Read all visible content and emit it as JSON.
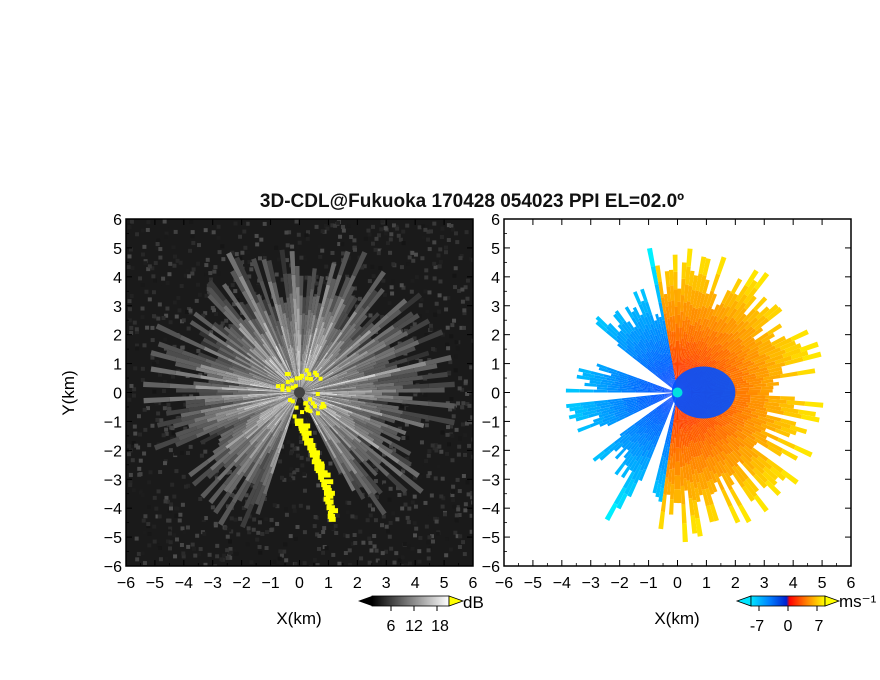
{
  "chart_data": [
    {
      "type": "heatmap",
      "title": "3D-CDL@Fukuoka 170428 054023 PPI EL=02.0º",
      "variable": "backscatter intensity (PPI scan, polar sectors)",
      "xlabel": "X(km)",
      "ylabel": "Y(km)",
      "xlim": [
        -6,
        6
      ],
      "ylim": [
        -6,
        6
      ],
      "xticks": [
        "-6",
        "-5",
        "-4",
        "-3",
        "-2",
        "-1",
        "0",
        "1",
        "2",
        "3",
        "4",
        "5",
        "6"
      ],
      "yticks": [
        "-6",
        "-5",
        "-4",
        "-3",
        "-2",
        "-1",
        "0",
        "1",
        "2",
        "3",
        "4",
        "5",
        "6"
      ],
      "colormap": "grayscale (black → white), yellow for values above range",
      "colorbar": {
        "unit": "dB",
        "ticks": [
          "6",
          "12",
          "18"
        ],
        "range": [
          0,
          20
        ]
      },
      "radar_origin": [
        0,
        0
      ],
      "echo_max_range_km": 5.5
    },
    {
      "type": "heatmap",
      "variable": "radial velocity (PPI scan, polar sectors)",
      "xlabel": "X(km)",
      "ylabel": "",
      "xlim": [
        -6,
        6
      ],
      "ylim": [
        -6,
        6
      ],
      "xticks": [
        "-6",
        "-5",
        "-4",
        "-3",
        "-2",
        "-1",
        "0",
        "1",
        "2",
        "3",
        "4",
        "5",
        "6"
      ],
      "yticks": [
        "-6",
        "-5",
        "-4",
        "-3",
        "-2",
        "-1",
        "0",
        "1",
        "2",
        "3",
        "4",
        "5",
        "6"
      ],
      "colormap": "cyan → blue (negative) / red → orange → yellow (positive)",
      "colorbar": {
        "unit": "ms⁻¹",
        "ticks": [
          "-7",
          "0",
          "7"
        ],
        "range": [
          -9,
          9
        ]
      },
      "radar_origin": [
        0,
        0
      ],
      "echo_max_range_km": 5.2
    }
  ],
  "colors": {
    "intensity_high": "#ffff00",
    "velocity_neg_far": "#00e5ff",
    "velocity_neg": "#0050ff",
    "velocity_pos": "#ff2000",
    "velocity_pos_far": "#ffe000",
    "origin_marker": "#444444",
    "origin_marker_velocity": "#00e0e0"
  }
}
